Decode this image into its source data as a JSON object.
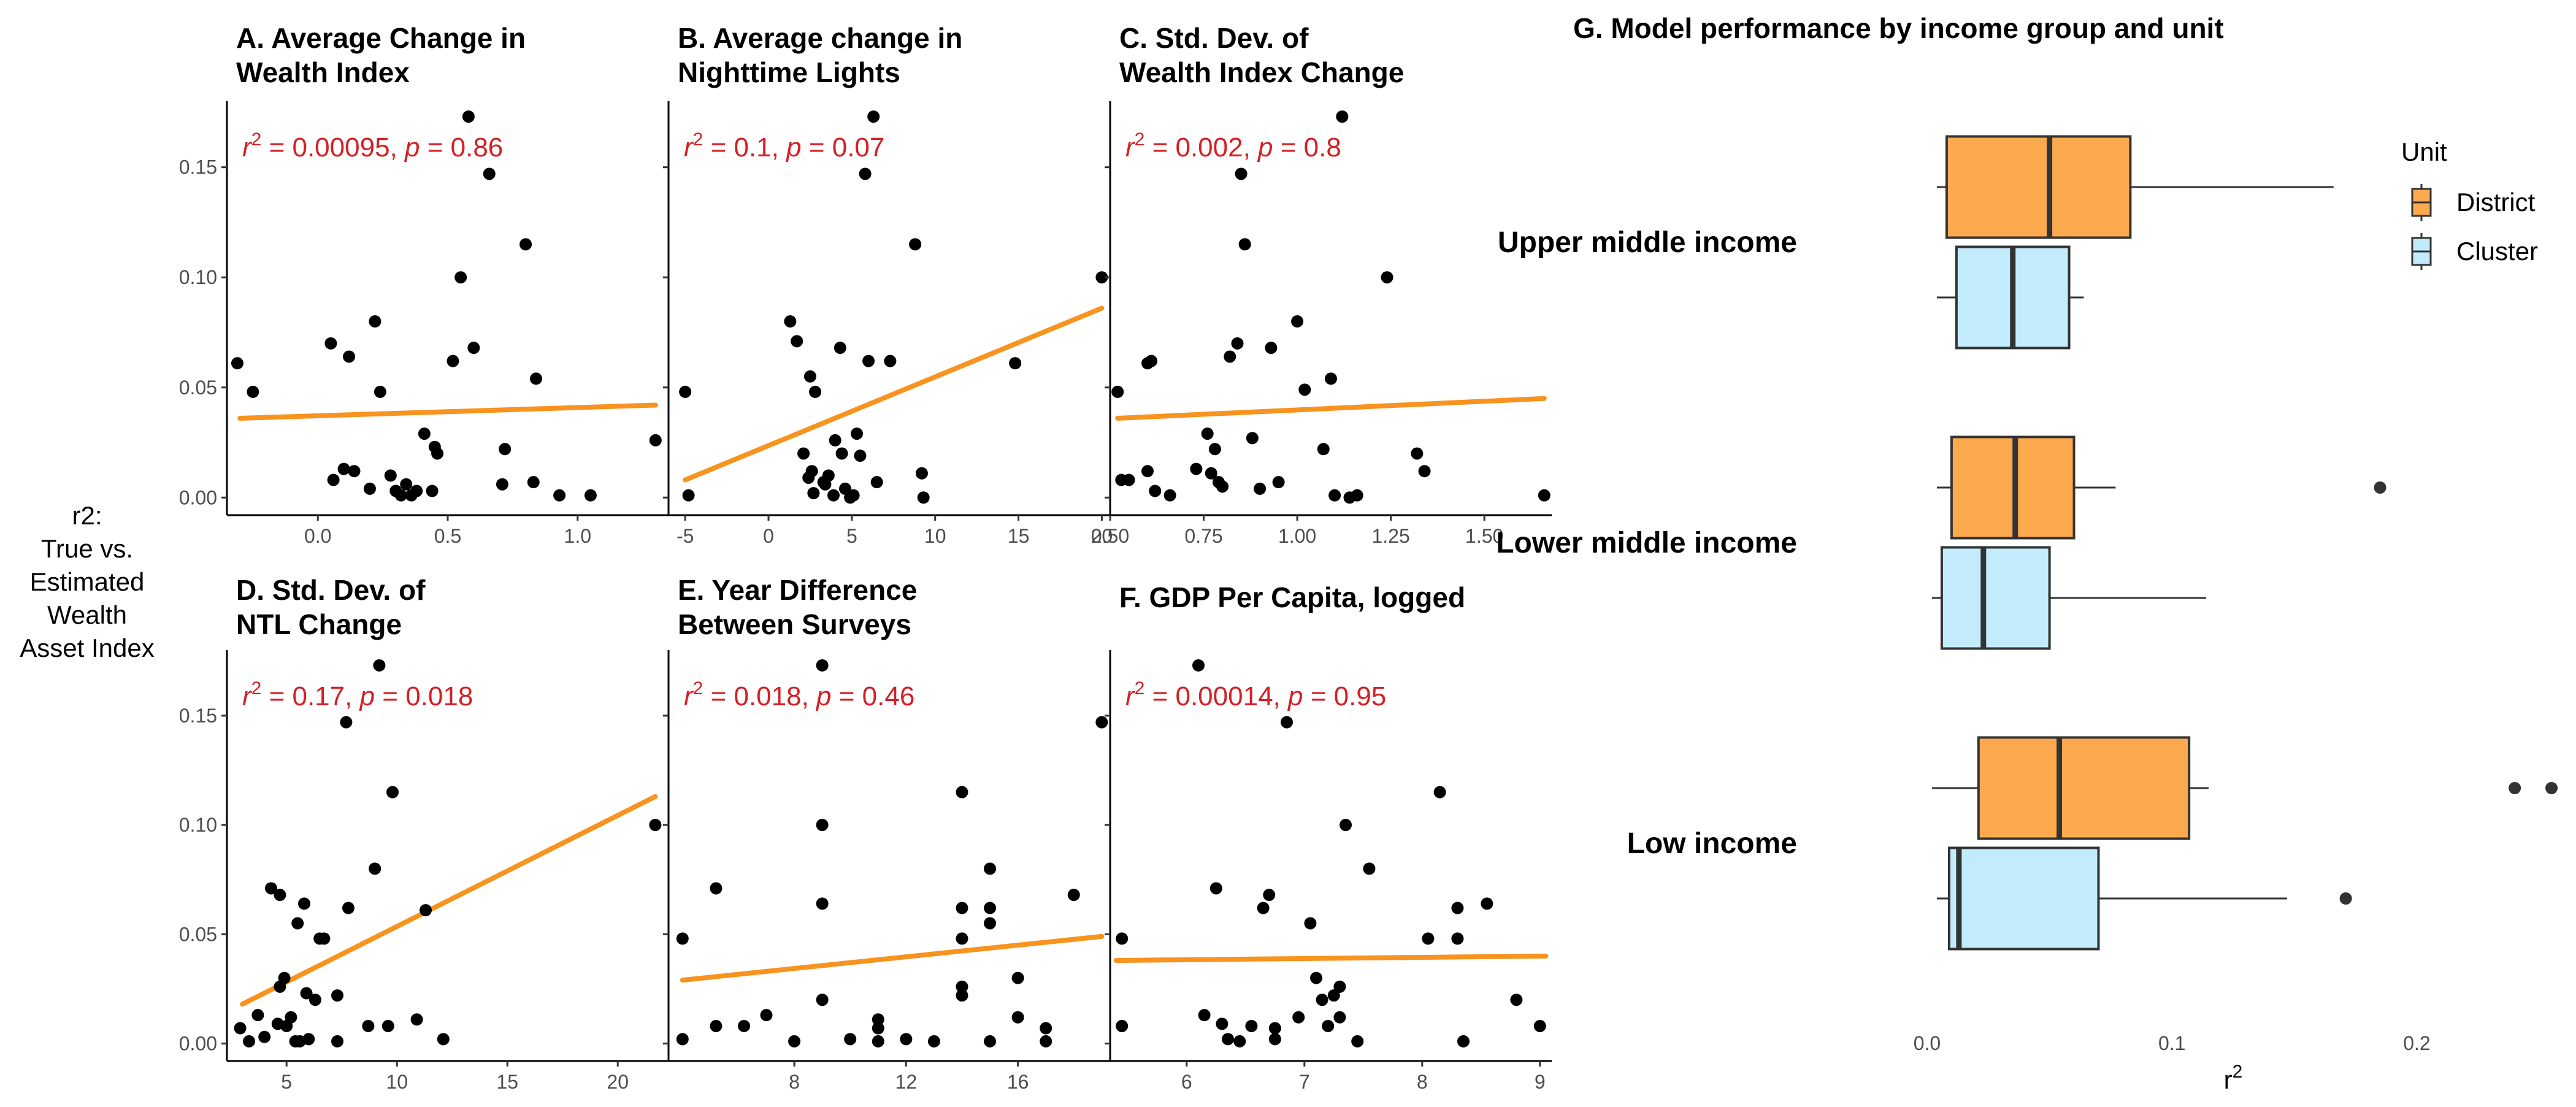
{
  "ylabel_lines": [
    "r2:",
    "True vs.",
    "Estimated",
    "Wealth",
    "Asset Index"
  ],
  "colors": {
    "points": "#000000",
    "fit": "#f7931e",
    "annotation": "#d42025",
    "district": "#fdaa4f",
    "cluster": "#c2ecfb"
  },
  "chart_data": [
    {
      "id": "A",
      "type": "scatter",
      "title_lines": [
        "A. Average Change in",
        "Wealth Index"
      ],
      "annotation": {
        "r2": "0.00095",
        "p": "0.86"
      },
      "xlim": [
        -0.35,
        1.35
      ],
      "ylim": [
        -0.008,
        0.18
      ],
      "xticks": [
        {
          "v": 0.0,
          "label": "0.0"
        },
        {
          "v": 0.5,
          "label": "0.5"
        },
        {
          "v": 1.0,
          "label": "1.0"
        }
      ],
      "yticks": [
        {
          "v": 0.0,
          "label": "0.00"
        },
        {
          "v": 0.05,
          "label": "0.05"
        },
        {
          "v": 0.1,
          "label": "0.10"
        },
        {
          "v": 0.15,
          "label": "0.15"
        }
      ],
      "fit": [
        [
          -0.3,
          0.036
        ],
        [
          1.3,
          0.042
        ]
      ],
      "points": [
        [
          -0.31,
          0.061
        ],
        [
          -0.25,
          0.048
        ],
        [
          0.05,
          0.07
        ],
        [
          0.12,
          0.064
        ],
        [
          0.22,
          0.08
        ],
        [
          0.24,
          0.048
        ],
        [
          0.06,
          0.008
        ],
        [
          0.1,
          0.013
        ],
        [
          0.14,
          0.012
        ],
        [
          0.2,
          0.004
        ],
        [
          0.28,
          0.01
        ],
        [
          0.3,
          0.003
        ],
        [
          0.32,
          0.001
        ],
        [
          0.34,
          0.006
        ],
        [
          0.36,
          0.001
        ],
        [
          0.38,
          0.003
        ],
        [
          0.41,
          0.029
        ],
        [
          0.45,
          0.023
        ],
        [
          0.46,
          0.02
        ],
        [
          0.44,
          0.003
        ],
        [
          0.52,
          0.062
        ],
        [
          0.55,
          0.1
        ],
        [
          0.6,
          0.068
        ],
        [
          0.66,
          0.147
        ],
        [
          0.58,
          0.173
        ],
        [
          0.72,
          0.022
        ],
        [
          0.71,
          0.006
        ],
        [
          0.8,
          0.115
        ],
        [
          0.84,
          0.054
        ],
        [
          0.83,
          0.007
        ],
        [
          0.93,
          0.001
        ],
        [
          1.05,
          0.001
        ],
        [
          1.3,
          0.026
        ]
      ]
    },
    {
      "id": "B",
      "type": "scatter",
      "title_lines": [
        "B. Average change in",
        "Nighttime Lights"
      ],
      "annotation": {
        "r2": "0.1",
        "p": "0.07"
      },
      "xlim": [
        -6,
        20.5
      ],
      "ylim": [
        -0.008,
        0.18
      ],
      "xticks": [
        {
          "v": -5,
          "label": "-5"
        },
        {
          "v": 0,
          "label": "0"
        },
        {
          "v": 5,
          "label": "5"
        },
        {
          "v": 10,
          "label": "10"
        },
        {
          "v": 15,
          "label": "15"
        },
        {
          "v": 20,
          "label": "20"
        }
      ],
      "yticks": [
        {
          "v": 0.0,
          "label": ""
        },
        {
          "v": 0.05,
          "label": ""
        },
        {
          "v": 0.1,
          "label": ""
        },
        {
          "v": 0.15,
          "label": ""
        }
      ],
      "fit": [
        [
          -5,
          0.008
        ],
        [
          20,
          0.086
        ]
      ],
      "points": [
        [
          -5,
          0.048
        ],
        [
          -4.8,
          0.001
        ],
        [
          1.3,
          0.08
        ],
        [
          1.7,
          0.071
        ],
        [
          2.5,
          0.055
        ],
        [
          2.8,
          0.048
        ],
        [
          3.3,
          0.007
        ],
        [
          2.1,
          0.02
        ],
        [
          2.4,
          0.009
        ],
        [
          2.6,
          0.012
        ],
        [
          2.7,
          0.002
        ],
        [
          3.4,
          0.006
        ],
        [
          3.6,
          0.01
        ],
        [
          3.9,
          0.001
        ],
        [
          4.3,
          0.068
        ],
        [
          4.0,
          0.026
        ],
        [
          4.4,
          0.02
        ],
        [
          4.6,
          0.004
        ],
        [
          4.9,
          0.0
        ],
        [
          5.1,
          0.001
        ],
        [
          5.3,
          0.029
        ],
        [
          5.5,
          0.019
        ],
        [
          6.0,
          0.062
        ],
        [
          5.8,
          0.147
        ],
        [
          6.3,
          0.173
        ],
        [
          6.5,
          0.007
        ],
        [
          7.3,
          0.062
        ],
        [
          8.8,
          0.115
        ],
        [
          9.2,
          0.011
        ],
        [
          9.3,
          0.0
        ],
        [
          14.8,
          0.061
        ],
        [
          20.0,
          0.1
        ]
      ]
    },
    {
      "id": "C",
      "type": "scatter",
      "title_lines": [
        "C. Std. Dev. of",
        "Wealth Index Change"
      ],
      "annotation": {
        "r2": "0.002",
        "p": "0.8"
      },
      "xlim": [
        0.5,
        1.68
      ],
      "ylim": [
        -0.008,
        0.18
      ],
      "xticks": [
        {
          "v": 0.5,
          "label": "0.50"
        },
        {
          "v": 0.75,
          "label": "0.75"
        },
        {
          "v": 1.0,
          "label": "1.00"
        },
        {
          "v": 1.25,
          "label": "1.25"
        },
        {
          "v": 1.5,
          "label": "1.50"
        }
      ],
      "yticks": [
        {
          "v": 0.0,
          "label": ""
        },
        {
          "v": 0.05,
          "label": ""
        },
        {
          "v": 0.1,
          "label": ""
        },
        {
          "v": 0.15,
          "label": ""
        }
      ],
      "fit": [
        [
          0.52,
          0.036
        ],
        [
          1.66,
          0.045
        ]
      ],
      "points": [
        [
          0.52,
          0.048
        ],
        [
          0.53,
          0.008
        ],
        [
          0.55,
          0.008
        ],
        [
          0.6,
          0.061
        ],
        [
          0.61,
          0.062
        ],
        [
          0.6,
          0.012
        ],
        [
          0.62,
          0.003
        ],
        [
          0.66,
          0.001
        ],
        [
          0.73,
          0.013
        ],
        [
          0.76,
          0.029
        ],
        [
          0.77,
          0.011
        ],
        [
          0.78,
          0.022
        ],
        [
          0.79,
          0.007
        ],
        [
          0.8,
          0.005
        ],
        [
          0.82,
          0.064
        ],
        [
          0.84,
          0.07
        ],
        [
          0.85,
          0.147
        ],
        [
          0.86,
          0.115
        ],
        [
          0.88,
          0.027
        ],
        [
          0.9,
          0.004
        ],
        [
          0.93,
          0.068
        ],
        [
          0.95,
          0.007
        ],
        [
          1.0,
          0.08
        ],
        [
          1.02,
          0.049
        ],
        [
          1.07,
          0.022
        ],
        [
          1.09,
          0.054
        ],
        [
          1.1,
          0.001
        ],
        [
          1.12,
          0.173
        ],
        [
          1.14,
          0.0
        ],
        [
          1.16,
          0.001
        ],
        [
          1.24,
          0.1
        ],
        [
          1.32,
          0.02
        ],
        [
          1.34,
          0.012
        ],
        [
          1.66,
          0.001
        ]
      ]
    },
    {
      "id": "D",
      "type": "scatter",
      "title_lines": [
        "D. Std. Dev. of",
        "NTL Change"
      ],
      "annotation": {
        "r2": "0.17",
        "p": "0.018"
      },
      "xlim": [
        2.3,
        22.3
      ],
      "ylim": [
        -0.008,
        0.18
      ],
      "xticks": [
        {
          "v": 5,
          "label": "5"
        },
        {
          "v": 10,
          "label": "10"
        },
        {
          "v": 15,
          "label": "15"
        },
        {
          "v": 20,
          "label": "20"
        }
      ],
      "yticks": [
        {
          "v": 0.0,
          "label": "0.00"
        },
        {
          "v": 0.05,
          "label": "0.05"
        },
        {
          "v": 0.1,
          "label": "0.10"
        },
        {
          "v": 0.15,
          "label": "0.15"
        }
      ],
      "fit": [
        [
          3,
          0.018
        ],
        [
          21.7,
          0.113
        ]
      ],
      "points": [
        [
          2.9,
          0.007
        ],
        [
          3.3,
          0.001
        ],
        [
          3.7,
          0.013
        ],
        [
          4.0,
          0.003
        ],
        [
          4.3,
          0.071
        ],
        [
          4.6,
          0.009
        ],
        [
          4.7,
          0.068
        ],
        [
          4.7,
          0.026
        ],
        [
          4.9,
          0.03
        ],
        [
          5.0,
          0.008
        ],
        [
          5.2,
          0.012
        ],
        [
          5.4,
          0.001
        ],
        [
          5.6,
          0.001
        ],
        [
          5.8,
          0.064
        ],
        [
          5.5,
          0.055
        ],
        [
          5.9,
          0.023
        ],
        [
          6.0,
          0.002
        ],
        [
          6.3,
          0.02
        ],
        [
          6.5,
          0.048
        ],
        [
          6.7,
          0.048
        ],
        [
          7.3,
          0.001
        ],
        [
          7.3,
          0.022
        ],
        [
          7.8,
          0.062
        ],
        [
          7.7,
          0.147
        ],
        [
          8.7,
          0.008
        ],
        [
          9.0,
          0.08
        ],
        [
          9.2,
          0.173
        ],
        [
          9.6,
          0.008
        ],
        [
          9.8,
          0.115
        ],
        [
          10.9,
          0.011
        ],
        [
          11.3,
          0.061
        ],
        [
          12.1,
          0.002
        ],
        [
          21.7,
          0.1
        ]
      ]
    },
    {
      "id": "E",
      "type": "scatter",
      "title_lines": [
        "E. Year Difference",
        "Between Surveys"
      ],
      "annotation": {
        "r2": "0.018",
        "p": "0.46"
      },
      "xlim": [
        3.5,
        19.3
      ],
      "ylim": [
        -0.008,
        0.18
      ],
      "xticks": [
        {
          "v": 8,
          "label": "8"
        },
        {
          "v": 12,
          "label": "12"
        },
        {
          "v": 16,
          "label": "16"
        }
      ],
      "yticks": [
        {
          "v": 0.0,
          "label": ""
        },
        {
          "v": 0.05,
          "label": ""
        },
        {
          "v": 0.1,
          "label": ""
        },
        {
          "v": 0.15,
          "label": ""
        }
      ],
      "fit": [
        [
          4,
          0.029
        ],
        [
          19,
          0.049
        ]
      ],
      "points": [
        [
          4,
          0.048
        ],
        [
          4,
          0.002
        ],
        [
          5.2,
          0.071
        ],
        [
          5.2,
          0.008
        ],
        [
          6.2,
          0.008
        ],
        [
          7,
          0.013
        ],
        [
          8,
          0.001
        ],
        [
          9,
          0.173
        ],
        [
          9,
          0.1
        ],
        [
          9,
          0.064
        ],
        [
          9,
          0.02
        ],
        [
          10,
          0.002
        ],
        [
          11,
          0.011
        ],
        [
          11,
          0.007
        ],
        [
          11,
          0.001
        ],
        [
          12,
          0.002
        ],
        [
          13,
          0.001
        ],
        [
          14,
          0.115
        ],
        [
          14,
          0.062
        ],
        [
          14,
          0.048
        ],
        [
          14,
          0.026
        ],
        [
          14,
          0.022
        ],
        [
          15,
          0.08
        ],
        [
          15,
          0.062
        ],
        [
          15,
          0.055
        ],
        [
          15,
          0.001
        ],
        [
          16,
          0.03
        ],
        [
          16,
          0.012
        ],
        [
          17,
          0.007
        ],
        [
          17,
          0.001
        ],
        [
          18,
          0.068
        ],
        [
          19,
          0.147
        ]
      ]
    },
    {
      "id": "F",
      "type": "scatter",
      "title_lines": [
        "F. GDP Per Capita, logged"
      ],
      "annotation": {
        "r2": "0.00014",
        "p": "0.95"
      },
      "xlim": [
        5.35,
        9.1
      ],
      "ylim": [
        -0.008,
        0.18
      ],
      "xticks": [
        {
          "v": 6,
          "label": "6"
        },
        {
          "v": 7,
          "label": "7"
        },
        {
          "v": 8,
          "label": "8"
        },
        {
          "v": 9,
          "label": "9"
        }
      ],
      "yticks": [
        {
          "v": 0.0,
          "label": ""
        },
        {
          "v": 0.05,
          "label": ""
        },
        {
          "v": 0.1,
          "label": ""
        },
        {
          "v": 0.15,
          "label": ""
        }
      ],
      "fit": [
        [
          5.4,
          0.038
        ],
        [
          9.05,
          0.04
        ]
      ],
      "points": [
        [
          5.45,
          0.048
        ],
        [
          5.45,
          0.008
        ],
        [
          6.1,
          0.173
        ],
        [
          6.15,
          0.013
        ],
        [
          6.25,
          0.071
        ],
        [
          6.3,
          0.009
        ],
        [
          6.35,
          0.002
        ],
        [
          6.45,
          0.001
        ],
        [
          6.55,
          0.008
        ],
        [
          6.65,
          0.062
        ],
        [
          6.7,
          0.068
        ],
        [
          6.75,
          0.007
        ],
        [
          6.75,
          0.002
        ],
        [
          6.85,
          0.147
        ],
        [
          6.95,
          0.012
        ],
        [
          7.05,
          0.055
        ],
        [
          7.1,
          0.03
        ],
        [
          7.15,
          0.02
        ],
        [
          7.2,
          0.008
        ],
        [
          7.25,
          0.022
        ],
        [
          7.3,
          0.026
        ],
        [
          7.3,
          0.012
        ],
        [
          7.35,
          0.1
        ],
        [
          7.45,
          0.001
        ],
        [
          7.55,
          0.08
        ],
        [
          8.05,
          0.048
        ],
        [
          8.15,
          0.115
        ],
        [
          8.3,
          0.062
        ],
        [
          8.3,
          0.048
        ],
        [
          8.35,
          0.001
        ],
        [
          8.55,
          0.064
        ],
        [
          8.8,
          0.02
        ],
        [
          9.0,
          0.008
        ]
      ]
    },
    {
      "id": "G",
      "type": "boxplot",
      "title": "G. Model performance by income group and unit",
      "xlabel": "r²",
      "xlim": [
        -0.003,
        0.26
      ],
      "xticks": [
        {
          "v": 0.0,
          "label": "0.0"
        },
        {
          "v": 0.1,
          "label": "0.1"
        },
        {
          "v": 0.2,
          "label": "0.2"
        }
      ],
      "legend": {
        "title": "Unit",
        "entries": [
          "District",
          "Cluster"
        ],
        "position": "right"
      },
      "groups": [
        {
          "name": "Upper middle income",
          "District": {
            "min": 0.004,
            "q1": 0.008,
            "median": 0.05,
            "q3": 0.083,
            "max": 0.166,
            "outliers": []
          },
          "Cluster": {
            "min": 0.004,
            "q1": 0.012,
            "median": 0.035,
            "q3": 0.058,
            "max": 0.064,
            "outliers": []
          }
        },
        {
          "name": "Lower middle income",
          "District": {
            "min": 0.004,
            "q1": 0.01,
            "median": 0.036,
            "q3": 0.06,
            "max": 0.077,
            "outliers": [
              0.185
            ]
          },
          "Cluster": {
            "min": 0.002,
            "q1": 0.006,
            "median": 0.023,
            "q3": 0.05,
            "max": 0.114,
            "outliers": []
          }
        },
        {
          "name": "Low income",
          "District": {
            "min": 0.002,
            "q1": 0.021,
            "median": 0.054,
            "q3": 0.107,
            "max": 0.115,
            "outliers": [
              0.24,
              0.255
            ]
          },
          "Cluster": {
            "min": 0.004,
            "q1": 0.009,
            "median": 0.013,
            "q3": 0.07,
            "max": 0.147,
            "outliers": [
              0.171
            ]
          }
        }
      ]
    }
  ]
}
